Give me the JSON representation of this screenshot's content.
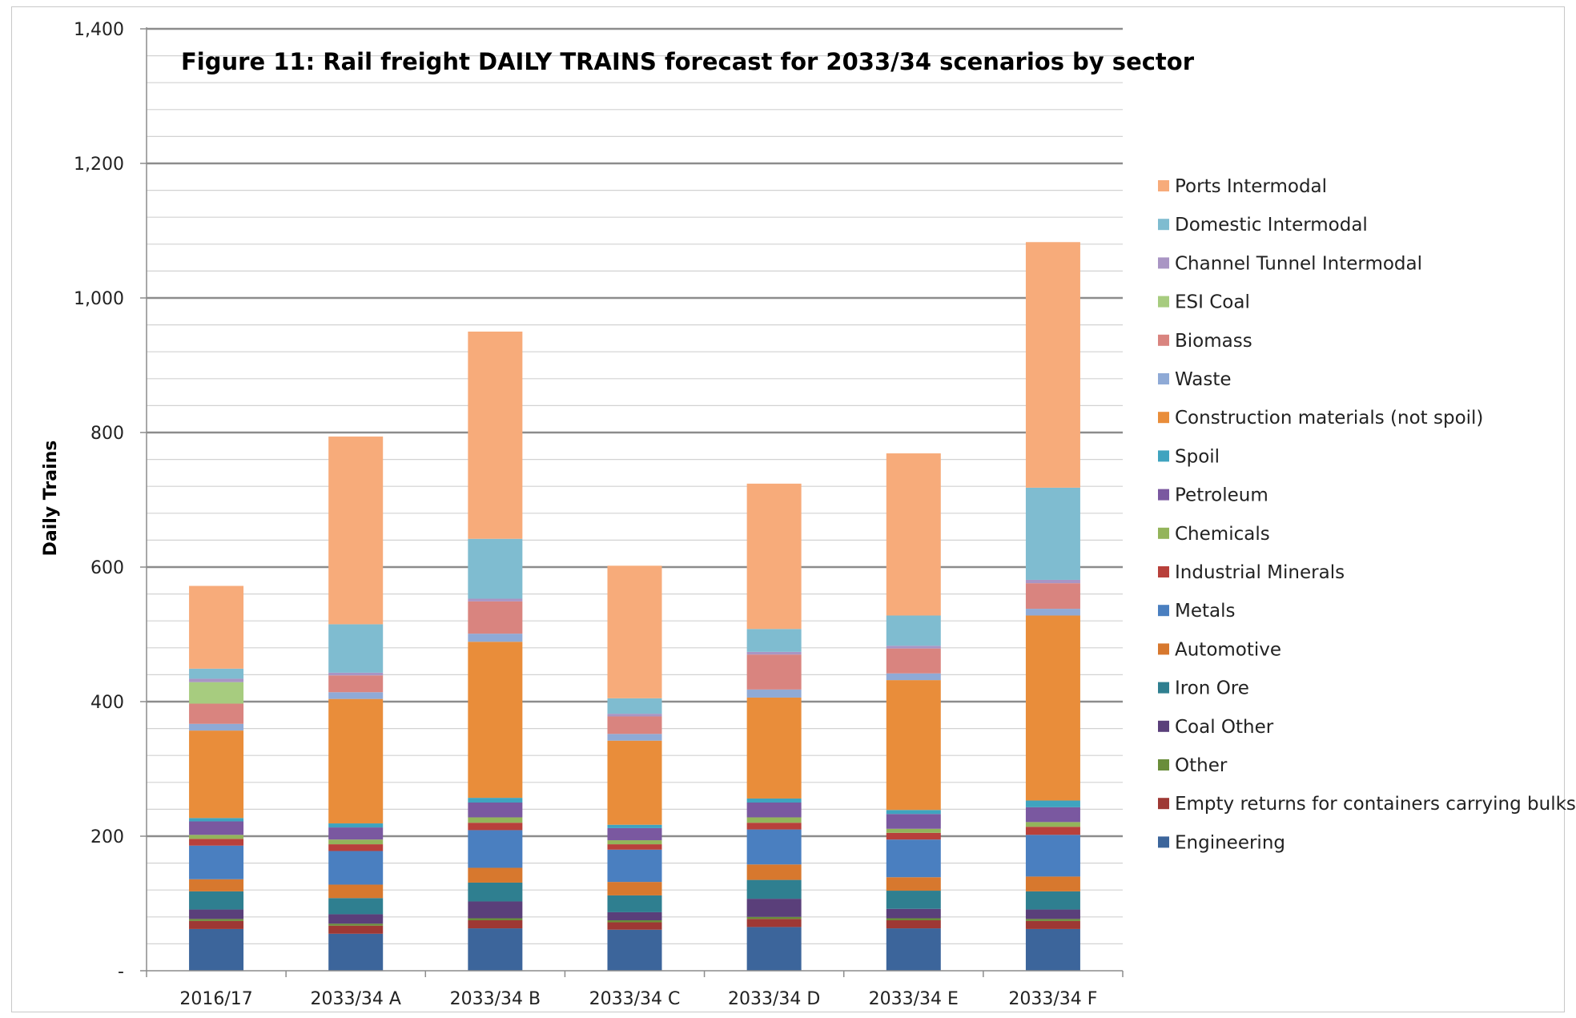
{
  "chart_data": {
    "type": "bar",
    "stacked": true,
    "title": "Figure 11:  Rail freight DAILY TRAINS forecast for 2033/34 scenarios by sector",
    "ylabel": "Daily Trains",
    "xlabel": "",
    "ylim": [
      0,
      1400
    ],
    "yticks": [
      0,
      200,
      400,
      600,
      800,
      1000,
      1200,
      1400
    ],
    "ytick_labels": [
      "-",
      "200",
      "400",
      "600",
      "800",
      "1,000",
      "1,200",
      "1,400"
    ],
    "grid": true,
    "legend_position": "right",
    "categories": [
      "2016/17",
      "2033/34 A",
      "2033/34 B",
      "2033/34 C",
      "2033/34 D",
      "2033/34 E",
      "2033/34 F"
    ],
    "series": [
      {
        "name": "Engineering",
        "color": "#3c659b",
        "values": [
          62,
          55,
          63,
          61,
          65,
          63,
          62
        ]
      },
      {
        "name": "Empty returns for containers carrying bulks",
        "color": "#9e3834",
        "values": [
          12,
          12,
          12,
          11,
          12,
          12,
          12
        ]
      },
      {
        "name": "Other",
        "color": "#6a8d3a",
        "values": [
          3,
          3,
          3,
          3,
          3,
          3,
          3
        ]
      },
      {
        "name": "Coal Other",
        "color": "#5a3f7a",
        "values": [
          14,
          14,
          25,
          12,
          27,
          14,
          14
        ]
      },
      {
        "name": "Iron Ore",
        "color": "#2f7f90",
        "values": [
          27,
          24,
          28,
          25,
          28,
          27,
          27
        ]
      },
      {
        "name": "Automotive",
        "color": "#d7782e",
        "values": [
          18,
          20,
          22,
          20,
          23,
          20,
          22
        ]
      },
      {
        "name": "Metals",
        "color": "#4a7fc0",
        "values": [
          50,
          50,
          56,
          48,
          52,
          56,
          62
        ]
      },
      {
        "name": "Industrial Minerals",
        "color": "#b8403b",
        "values": [
          10,
          10,
          11,
          8,
          10,
          10,
          12
        ]
      },
      {
        "name": "Chemicals",
        "color": "#93b45a",
        "values": [
          6,
          7,
          8,
          6,
          8,
          6,
          7
        ]
      },
      {
        "name": "Petroleum",
        "color": "#7a58a0",
        "values": [
          20,
          18,
          22,
          18,
          22,
          22,
          22
        ]
      },
      {
        "name": "Spoil",
        "color": "#3fa3bf",
        "values": [
          5,
          6,
          7,
          5,
          6,
          6,
          10
        ]
      },
      {
        "name": "Construction materials (not spoil)",
        "color": "#e98d3a",
        "values": [
          130,
          185,
          232,
          125,
          150,
          193,
          275
        ]
      },
      {
        "name": "Waste",
        "color": "#8faad6",
        "values": [
          10,
          10,
          12,
          10,
          12,
          10,
          10
        ]
      },
      {
        "name": "Biomass",
        "color": "#d9847f",
        "values": [
          30,
          25,
          48,
          26,
          52,
          37,
          38
        ]
      },
      {
        "name": "ESI Coal",
        "color": "#a7cc7f",
        "values": [
          32,
          0,
          0,
          0,
          0,
          0,
          0
        ]
      },
      {
        "name": "Channel Tunnel Intermodal",
        "color": "#a995c4",
        "values": [
          5,
          4,
          4,
          4,
          4,
          4,
          5
        ]
      },
      {
        "name": "Domestic Intermodal",
        "color": "#7fbcd0",
        "values": [
          15,
          72,
          89,
          23,
          34,
          45,
          137
        ]
      },
      {
        "name": "Ports Intermodal",
        "color": "#f7ab7a",
        "values": [
          123,
          279,
          308,
          197,
          216,
          241,
          365
        ]
      }
    ],
    "legend_order": [
      "Ports Intermodal",
      "Domestic Intermodal",
      "Channel Tunnel Intermodal",
      "ESI Coal",
      "Biomass",
      "Waste",
      "Construction materials (not spoil)",
      "Spoil",
      "Petroleum",
      "Chemicals",
      "Industrial Minerals",
      "Metals",
      "Automotive",
      "Iron Ore",
      "Coal Other",
      "Other",
      "Empty returns for containers carrying bulks",
      "Engineering"
    ]
  }
}
